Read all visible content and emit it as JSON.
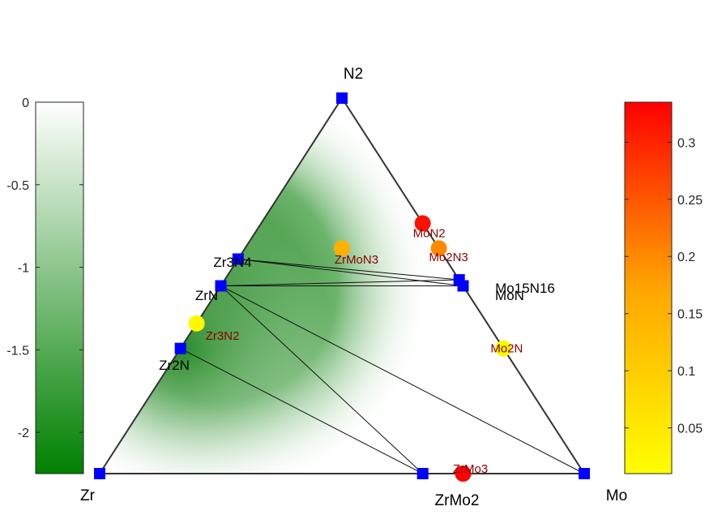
{
  "chart_data": {
    "type": "ternary-phase-diagram",
    "vertices": {
      "top": "N2",
      "left": "Zr",
      "right": "Mo"
    },
    "stable_phases": [
      {
        "name": "N2",
        "comp": [
          0,
          0,
          1
        ],
        "label": "N2"
      },
      {
        "name": "Zr",
        "comp": [
          1,
          0,
          0
        ],
        "label": "Zr"
      },
      {
        "name": "Mo",
        "comp": [
          0,
          1,
          0
        ],
        "label": "Mo"
      },
      {
        "name": "ZrMo2",
        "comp": [
          0.3333,
          0.6667,
          0
        ],
        "label": "ZrMo2"
      },
      {
        "name": "Zr2N",
        "comp": [
          0.6667,
          0,
          0.3333
        ],
        "label": "Zr2N"
      },
      {
        "name": "ZrN",
        "comp": [
          0.5,
          0,
          0.5
        ],
        "label": "ZrN"
      },
      {
        "name": "Zr3N4",
        "comp": [
          0.4286,
          0,
          0.5714
        ],
        "label": "Zr3N4"
      },
      {
        "name": "MoN",
        "comp": [
          0,
          0.5,
          0.5
        ],
        "label": "MoN"
      },
      {
        "name": "Mo15N16",
        "comp": [
          0,
          0.4839,
          0.5161
        ],
        "label": "Mo15N16"
      }
    ],
    "tie_lines": [
      [
        "Zr2N",
        "ZrMo2"
      ],
      [
        "ZrN",
        "ZrMo2"
      ],
      [
        "ZrN",
        "Mo"
      ],
      [
        "ZrN",
        "MoN"
      ],
      [
        "ZrN",
        "Mo15N16"
      ],
      [
        "Zr3N4",
        "Mo15N16"
      ],
      [
        "Zr3N4",
        "MoN"
      ]
    ],
    "unstable_phases": [
      {
        "name": "MoN2",
        "comp": [
          0,
          0.3333,
          0.6667
        ],
        "e_above_hull": 0.32,
        "label": "MoN2"
      },
      {
        "name": "Mo2N3",
        "comp": [
          0,
          0.4,
          0.6
        ],
        "e_above_hull": 0.2,
        "label": "Mo2N3"
      },
      {
        "name": "ZrMoN3",
        "comp": [
          0.2,
          0.2,
          0.6
        ],
        "e_above_hull": 0.15,
        "label": "ZrMoN3"
      },
      {
        "name": "Mo2N",
        "comp": [
          0,
          0.6667,
          0.3333
        ],
        "e_above_hull": 0.02,
        "label": "Mo2N"
      },
      {
        "name": "Zr3N2",
        "comp": [
          0.6,
          0,
          0.4
        ],
        "e_above_hull": 0.02,
        "label": "Zr3N2"
      },
      {
        "name": "ZrMo3",
        "comp": [
          0.25,
          0.75,
          0
        ],
        "e_above_hull": 0.34,
        "label": "ZrMo3"
      }
    ],
    "formation_energy_colorbar": {
      "range": [
        -2.25,
        0
      ],
      "ticks": [
        "0",
        "-0.5",
        "-1",
        "-1.5",
        "-2"
      ],
      "tick_values": [
        0,
        -0.5,
        -1,
        -1.5,
        -2
      ],
      "colors": [
        "#008000",
        "#ffffff"
      ]
    },
    "hull_energy_colorbar": {
      "range": [
        0.01,
        0.335
      ],
      "ticks": [
        "0.05",
        "0.1",
        "0.15",
        "0.2",
        "0.25",
        "0.3"
      ],
      "tick_values": [
        0.05,
        0.1,
        0.15,
        0.2,
        0.25,
        0.3
      ],
      "colors": [
        "#ffff00",
        "#ffa500",
        "#ff0000"
      ]
    },
    "marker_color": "#0000ff",
    "edge_color": "#333333"
  }
}
